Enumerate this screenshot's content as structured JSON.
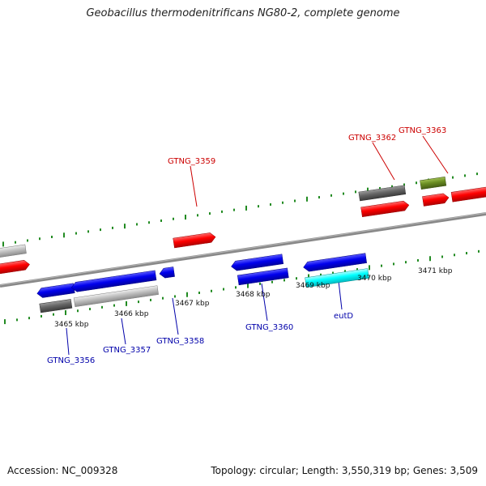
{
  "title": "Geobacillus thermodenitrificans NG80-2, complete genome",
  "footer": {
    "accession": "Accession: NC_009328",
    "stats": "Topology: circular; Length: 3,550,319 bp; Genes: 3,509"
  },
  "colors": {
    "forward_gene": "#ff0000",
    "reverse_gene": "#0000ee",
    "rna_gene": "#00ffff",
    "pseudo_gene_dark": "#666666",
    "pseudo_gene_light": "#c0c0c0",
    "other_gene": "#6b8e23",
    "ticks": "#228b22",
    "backbone": "#888888",
    "forward_label": "#cc0000",
    "reverse_label": "#0000aa"
  },
  "ticks": [
    "3465 kbp",
    "3466 kbp",
    "3467 kbp",
    "3468 kbp",
    "3469 kbp",
    "3470 kbp",
    "3471 kbp"
  ],
  "labels": {
    "top": [
      "GTNG_3359",
      "GTNG_3362",
      "GTNG_3363"
    ],
    "bottom": [
      "GTNG_3356",
      "GTNG_3357",
      "GTNG_3358",
      "GTNG_3360",
      "eutD"
    ]
  }
}
